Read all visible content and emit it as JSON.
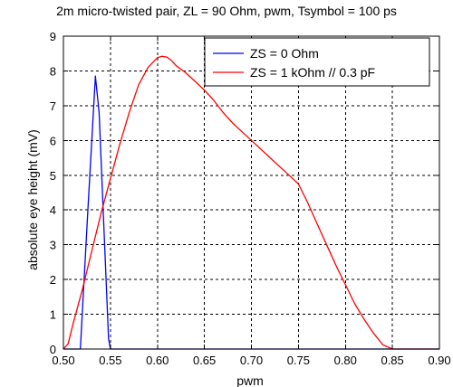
{
  "chart_data": {
    "type": "line",
    "title": "2m micro-twisted pair, ZL = 90 Ohm, pwm, Tsymbol = 100 ps",
    "xlabel": "pwm",
    "ylabel": "absolute eye height (mV)",
    "xlim": [
      0.5,
      0.9
    ],
    "ylim": [
      0,
      9
    ],
    "xticks": [
      "0.50",
      "0.55",
      "0.60",
      "0.65",
      "0.70",
      "0.75",
      "0.80",
      "0.85",
      "0.90"
    ],
    "yticks": [
      "0",
      "1",
      "2",
      "3",
      "4",
      "5",
      "6",
      "7",
      "8",
      "9"
    ],
    "grid": true,
    "legend_position": "top-right",
    "series": [
      {
        "name": "ZS = 0 Ohm",
        "color": "#0000ff",
        "x": [
          0.5,
          0.51,
          0.518,
          0.526,
          0.534,
          0.538,
          0.548,
          0.55,
          0.6,
          0.65,
          0.7,
          0.75,
          0.8,
          0.85,
          0.9
        ],
        "y": [
          0,
          0,
          0,
          4.0,
          7.85,
          6.8,
          0.3,
          0,
          0,
          0,
          0,
          0,
          0,
          0,
          0
        ]
      },
      {
        "name": "ZS = 1 kOhm // 0.3 pF",
        "color": "#ff0000",
        "x": [
          0.5,
          0.505,
          0.51,
          0.52,
          0.53,
          0.54,
          0.55,
          0.56,
          0.57,
          0.58,
          0.59,
          0.6,
          0.605,
          0.61,
          0.615,
          0.62,
          0.63,
          0.64,
          0.65,
          0.66,
          0.67,
          0.68,
          0.69,
          0.7,
          0.72,
          0.74,
          0.75,
          0.76,
          0.77,
          0.78,
          0.79,
          0.8,
          0.81,
          0.82,
          0.83,
          0.84,
          0.85,
          0.86,
          0.88,
          0.9
        ],
        "y": [
          0,
          0.15,
          0.7,
          1.7,
          2.8,
          3.9,
          4.9,
          5.9,
          6.8,
          7.6,
          8.1,
          8.38,
          8.42,
          8.4,
          8.3,
          8.15,
          7.95,
          7.7,
          7.45,
          7.15,
          6.8,
          6.5,
          6.25,
          6.0,
          5.5,
          5.0,
          4.75,
          4.2,
          3.6,
          3.0,
          2.4,
          1.85,
          1.3,
          0.85,
          0.45,
          0.12,
          0,
          0,
          0,
          0
        ]
      }
    ]
  }
}
